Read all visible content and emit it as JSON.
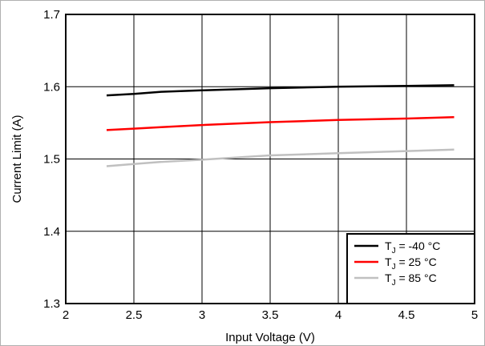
{
  "chart_data": {
    "type": "line",
    "xlabel": "Input Voltage (V)",
    "ylabel": "Current Limit (A)",
    "xlim": [
      2,
      5
    ],
    "ylim": [
      1.3,
      1.7
    ],
    "xticks": [
      "2",
      "2.5",
      "3",
      "3.5",
      "4",
      "4.5",
      "5"
    ],
    "yticks": [
      "1.3",
      "1.4",
      "1.5",
      "1.6",
      "1.7"
    ],
    "grid": true,
    "legend_position": "bottom-right",
    "series": [
      {
        "name": "T_J = -40 °C",
        "label_main": "T",
        "label_sub": "J",
        "label_rest": " = -40 °C",
        "color": "#000000",
        "x": [
          2.3,
          2.5,
          2.7,
          3.0,
          3.5,
          4.0,
          4.5,
          4.85
        ],
        "y": [
          1.588,
          1.59,
          1.593,
          1.595,
          1.598,
          1.6,
          1.601,
          1.602
        ]
      },
      {
        "name": "T_J = 25 °C",
        "label_main": "T",
        "label_sub": "J",
        "label_rest": " = 25 °C",
        "color": "#ff0000",
        "x": [
          2.3,
          2.5,
          2.7,
          3.0,
          3.5,
          4.0,
          4.5,
          4.85
        ],
        "y": [
          1.54,
          1.542,
          1.544,
          1.547,
          1.551,
          1.554,
          1.556,
          1.558
        ]
      },
      {
        "name": "T_J = 85 °C",
        "label_main": "T",
        "label_sub": "J",
        "label_rest": " = 85 °C",
        "color": "#c0c0c0",
        "x": [
          2.3,
          2.5,
          2.7,
          3.0,
          3.5,
          4.0,
          4.5,
          4.85
        ],
        "y": [
          1.49,
          1.493,
          1.496,
          1.499,
          1.505,
          1.508,
          1.511,
          1.513
        ]
      }
    ]
  }
}
